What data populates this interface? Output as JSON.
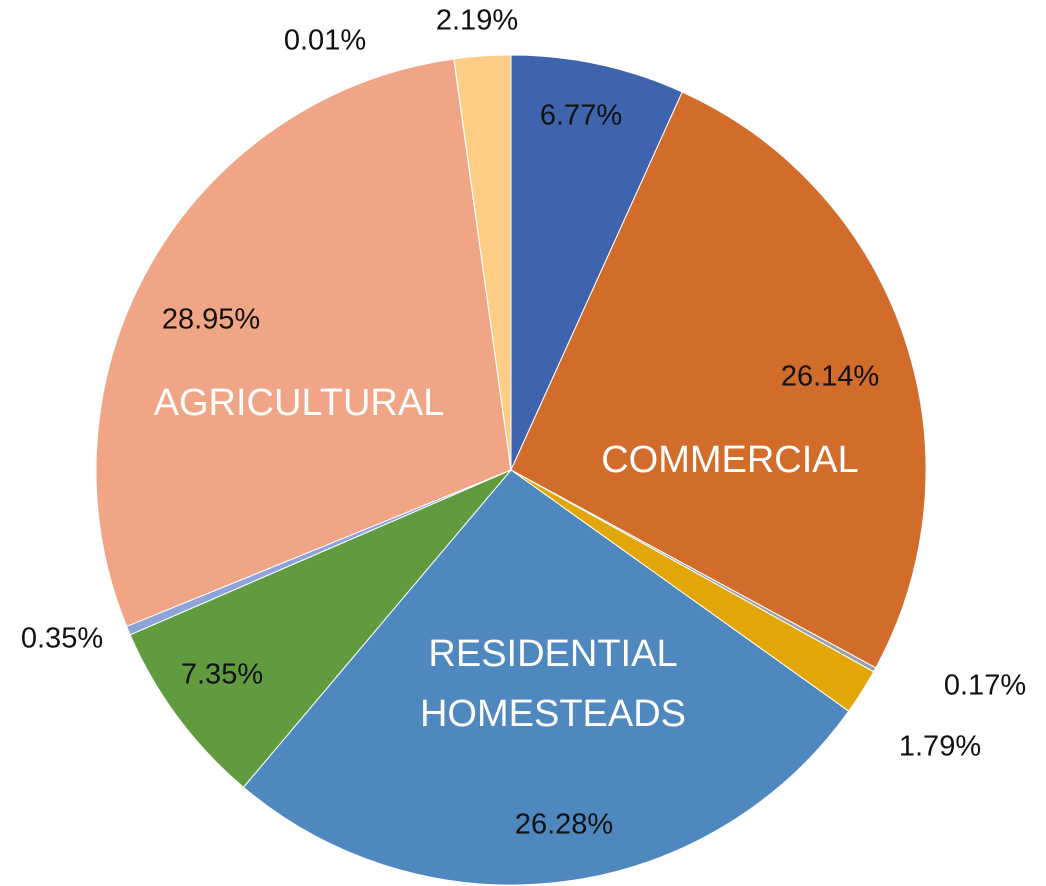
{
  "chart_data": {
    "type": "pie",
    "categories": [
      null,
      "COMMERCIAL",
      null,
      null,
      "RESIDENTIAL HOMESTEADS",
      null,
      null,
      "AGRICULTURAL",
      null,
      null
    ],
    "values": [
      6.77,
      26.14,
      0.17,
      1.79,
      26.28,
      7.35,
      0.35,
      28.95,
      0.01,
      2.19
    ],
    "value_labels": [
      "6.77%",
      "26.14%",
      "0.17%",
      "1.79%",
      "26.28%",
      "7.35%",
      "0.35%",
      "28.95%",
      "0.01%",
      "2.19%"
    ],
    "colors": [
      "#3e64ad",
      "#d26c2b",
      "#9aa0a8",
      "#e2a707",
      "#4f88be",
      "#619b40",
      "#8ea3d9",
      "#f0a686",
      "#c9c9c9",
      "#fdcd85"
    ]
  }
}
